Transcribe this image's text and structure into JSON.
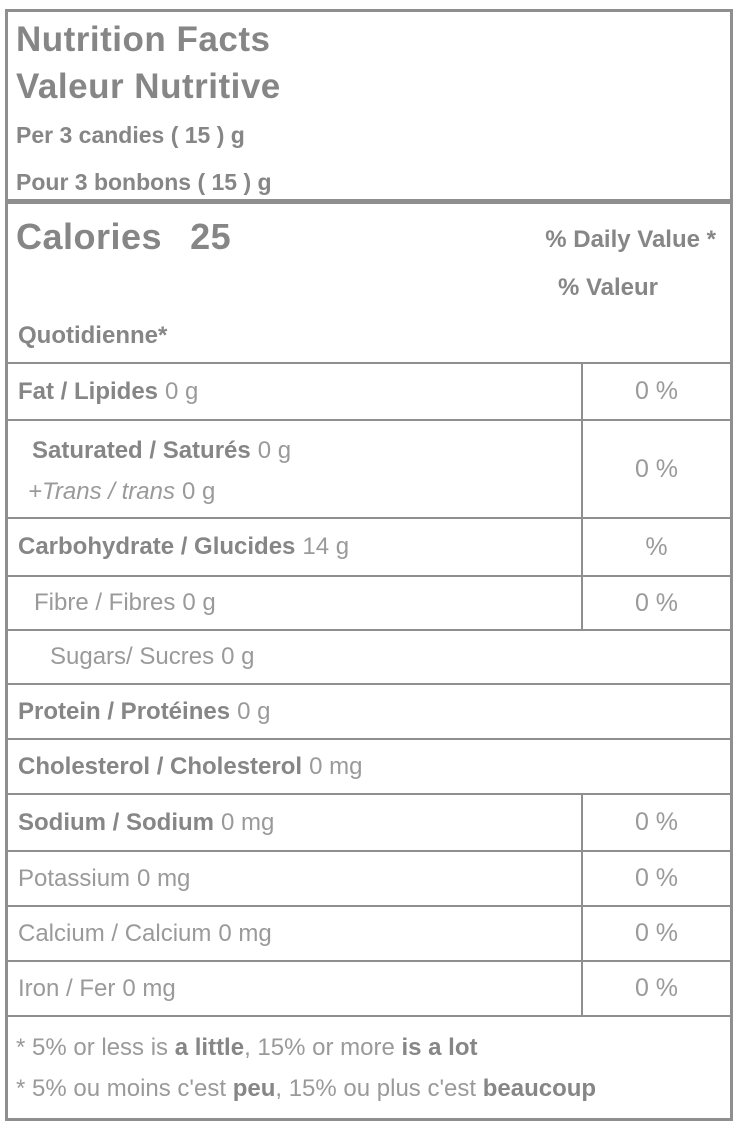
{
  "header": {
    "title_en": "Nutrition Facts",
    "title_fr": "Valeur Nutritive",
    "serving_en": "Per 3 candies ( 15 ) g",
    "serving_fr": "Pour 3 bonbons ( 15 ) g"
  },
  "calories": {
    "label": "Calories",
    "value": "25"
  },
  "daily_value_heading": {
    "en": "% Daily Value *",
    "fr_line1": "% Valeur",
    "fr_line2": "Quotidienne*"
  },
  "rows": [
    {
      "name": "Fat / Lipides",
      "amount": "0 g",
      "dv": "0 %"
    },
    {
      "name": "Saturated / Saturés",
      "amount": "0 g",
      "name2": "+Trans / trans",
      "amount2": "0 g",
      "dv": "0 %"
    },
    {
      "name": "Carbohydrate / Glucides",
      "amount": "14 g",
      "dv": "%"
    },
    {
      "name": "Fibre / Fibres",
      "amount": "0 g",
      "dv": "0 %"
    },
    {
      "name": "Sugars/ Sucres",
      "amount": "0 g"
    },
    {
      "name": "Protein / Protéines",
      "amount": "0 g"
    },
    {
      "name": "Cholesterol / Cholesterol",
      "amount": "0 mg"
    },
    {
      "name": "Sodium / Sodium",
      "amount": "0 mg",
      "dv": "0 %"
    },
    {
      "name": "Potassium",
      "amount": "0 mg",
      "dv": "0 %"
    },
    {
      "name": "Calcium / Calcium",
      "amount": "0 mg",
      "dv": "0 %"
    },
    {
      "name": "Iron / Fer",
      "amount": "0 mg",
      "dv": "0 %"
    }
  ],
  "footnotes": {
    "en": {
      "p1": "* 5% or less is ",
      "b1": "a little",
      "p2": ", 15% or more ",
      "b2": "is a lot"
    },
    "fr": {
      "p1": "* 5% ou moins c'est ",
      "b1": "peu",
      "p2": ", 15% ou plus c'est ",
      "b2": "beaucoup"
    }
  },
  "colors": {
    "border": "#8f8f8f",
    "bold_text": "#868686",
    "regular_text": "#9a9a9a",
    "background": "#ffffff"
  }
}
